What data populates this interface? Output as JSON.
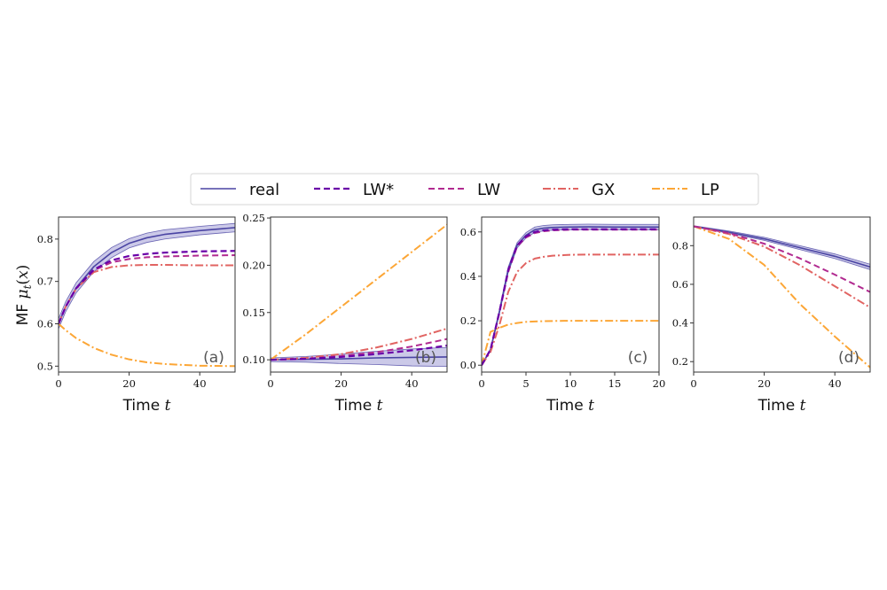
{
  "chart_data": {
    "type": "line",
    "ylabel": "MF μ_t(x)",
    "legend": {
      "placement": "top-center",
      "entries": [
        {
          "name": "real",
          "color": "#4a44a3",
          "style": "solid"
        },
        {
          "name": "LW*",
          "color": "#6a00a8",
          "style": "dashed"
        },
        {
          "name": "LW",
          "color": "#b12a90",
          "style": "dashed"
        },
        {
          "name": "GX",
          "color": "#e16462",
          "style": "dashdot"
        },
        {
          "name": "LP",
          "color": "#fca636",
          "style": "dashdot"
        }
      ]
    },
    "band_color": "#b9b7e0",
    "grid": false,
    "panels": [
      {
        "label": "(a)",
        "xlabel": "Time t",
        "xlim": [
          0,
          50
        ],
        "ylim": [
          0.486,
          0.852
        ],
        "xticks": [
          0,
          20,
          40
        ],
        "yticks": [
          0.5,
          0.6,
          0.7,
          0.8
        ],
        "xtick_labels": [
          "0",
          "20",
          "40"
        ],
        "ytick_labels": [
          "0.5",
          "0.6",
          "0.7",
          "0.8"
        ],
        "x": [
          0,
          2,
          5,
          10,
          15,
          20,
          25,
          30,
          40,
          50
        ],
        "series": [
          {
            "name": "real",
            "values": [
              0.6,
              0.64,
              0.685,
              0.735,
              0.768,
              0.79,
              0.803,
              0.811,
              0.82,
              0.827
            ],
            "band": [
              0.012,
              0.012,
              0.012,
              0.012,
              0.012,
              0.011,
              0.011,
              0.011,
              0.01,
              0.01
            ]
          },
          {
            "name": "LW*",
            "values": [
              0.6,
              0.64,
              0.684,
              0.728,
              0.75,
              0.76,
              0.765,
              0.768,
              0.771,
              0.772
            ]
          },
          {
            "name": "LW",
            "values": [
              0.6,
              0.64,
              0.684,
              0.726,
              0.745,
              0.753,
              0.757,
              0.759,
              0.761,
              0.762
            ]
          },
          {
            "name": "GX",
            "values": [
              0.6,
              0.64,
              0.683,
              0.722,
              0.734,
              0.738,
              0.739,
              0.739,
              0.738,
              0.738
            ]
          },
          {
            "name": "LP",
            "values": [
              0.6,
              0.585,
              0.566,
              0.543,
              0.527,
              0.516,
              0.509,
              0.505,
              0.501,
              0.5
            ]
          }
        ]
      },
      {
        "label": "(b)",
        "xlabel": "Time t",
        "xlim": [
          0,
          50
        ],
        "ylim": [
          0.087,
          0.251
        ],
        "xticks": [
          0,
          20,
          40
        ],
        "yticks": [
          0.1,
          0.15,
          0.2,
          0.25
        ],
        "xtick_labels": [
          "0",
          "20",
          "40"
        ],
        "ytick_labels": [
          "0.10",
          "0.15",
          "0.20",
          "0.25"
        ],
        "x": [
          0,
          10,
          20,
          30,
          40,
          50
        ],
        "series": [
          {
            "name": "real",
            "values": [
              0.1,
              0.1005,
              0.101,
              0.102,
              0.1025,
              0.103
            ],
            "band": [
              0.002,
              0.003,
              0.005,
              0.007,
              0.009,
              0.01
            ]
          },
          {
            "name": "LW*",
            "values": [
              0.1,
              0.101,
              0.103,
              0.106,
              0.11,
              0.115
            ]
          },
          {
            "name": "LW",
            "values": [
              0.1,
              0.101,
              0.104,
              0.108,
              0.114,
              0.122
            ]
          },
          {
            "name": "GX",
            "values": [
              0.1,
              0.102,
              0.106,
              0.113,
              0.122,
              0.133
            ]
          },
          {
            "name": "LP",
            "values": [
              0.1,
              0.127,
              0.156,
              0.185,
              0.214,
              0.243
            ]
          }
        ]
      },
      {
        "label": "(c)",
        "xlabel": "Time t",
        "xlim": [
          0,
          20
        ],
        "ylim": [
          -0.031,
          0.667
        ],
        "xticks": [
          0,
          5,
          10,
          15,
          20
        ],
        "yticks": [
          0.0,
          0.2,
          0.4,
          0.6
        ],
        "xtick_labels": [
          "0",
          "5",
          "10",
          "15",
          "20"
        ],
        "ytick_labels": [
          "0.0",
          "0.2",
          "0.4",
          "0.6"
        ],
        "x": [
          0,
          1,
          2,
          3,
          4,
          5,
          6,
          7,
          8,
          10,
          12,
          15,
          20
        ],
        "series": [
          {
            "name": "real",
            "values": [
              0,
              0.07,
              0.24,
              0.43,
              0.54,
              0.585,
              0.61,
              0.617,
              0.62,
              0.622,
              0.623,
              0.622,
              0.622
            ],
            "band": [
              0,
              0.005,
              0.01,
              0.012,
              0.012,
              0.012,
              0.012,
              0.012,
              0.012,
              0.012,
              0.012,
              0.012,
              0.012
            ]
          },
          {
            "name": "LW*",
            "values": [
              0,
              0.07,
              0.24,
              0.43,
              0.54,
              0.58,
              0.6,
              0.607,
              0.61,
              0.612,
              0.612,
              0.612,
              0.612
            ]
          },
          {
            "name": "LW",
            "values": [
              0,
              0.07,
              0.235,
              0.42,
              0.535,
              0.575,
              0.595,
              0.603,
              0.607,
              0.61,
              0.61,
              0.61,
              0.61
            ]
          },
          {
            "name": "GX",
            "values": [
              0,
              0.06,
              0.18,
              0.33,
              0.42,
              0.46,
              0.48,
              0.488,
              0.493,
              0.497,
              0.498,
              0.498,
              0.498
            ]
          },
          {
            "name": "LP",
            "values": [
              0,
              0.15,
              0.168,
              0.183,
              0.19,
              0.195,
              0.197,
              0.198,
              0.199,
              0.2,
              0.2,
              0.2,
              0.2
            ]
          }
        ]
      },
      {
        "label": "(d)",
        "xlabel": "Time t",
        "xlim": [
          0,
          50
        ],
        "ylim": [
          0.146,
          0.948
        ],
        "xticks": [
          0,
          20,
          40
        ],
        "yticks": [
          0.2,
          0.4,
          0.6,
          0.8
        ],
        "xtick_labels": [
          "0",
          "20",
          "40"
        ],
        "ytick_labels": [
          "0.2",
          "0.4",
          "0.6",
          "0.8"
        ],
        "x": [
          0,
          10,
          20,
          30,
          40,
          50
        ],
        "series": [
          {
            "name": "real",
            "values": [
              0.9,
              0.87,
              0.835,
              0.79,
              0.745,
              0.69
            ],
            "band": [
              0.003,
              0.006,
              0.008,
              0.01,
              0.012,
              0.014
            ]
          },
          {
            "name": "LW",
            "values": [
              0.9,
              0.865,
              0.81,
              0.735,
              0.65,
              0.56
            ]
          },
          {
            "name": "GX",
            "values": [
              0.9,
              0.86,
              0.795,
              0.7,
              0.59,
              0.48
            ]
          },
          {
            "name": "LP",
            "values": [
              0.9,
              0.835,
              0.7,
              0.5,
              0.33,
              0.17
            ]
          }
        ]
      }
    ]
  }
}
